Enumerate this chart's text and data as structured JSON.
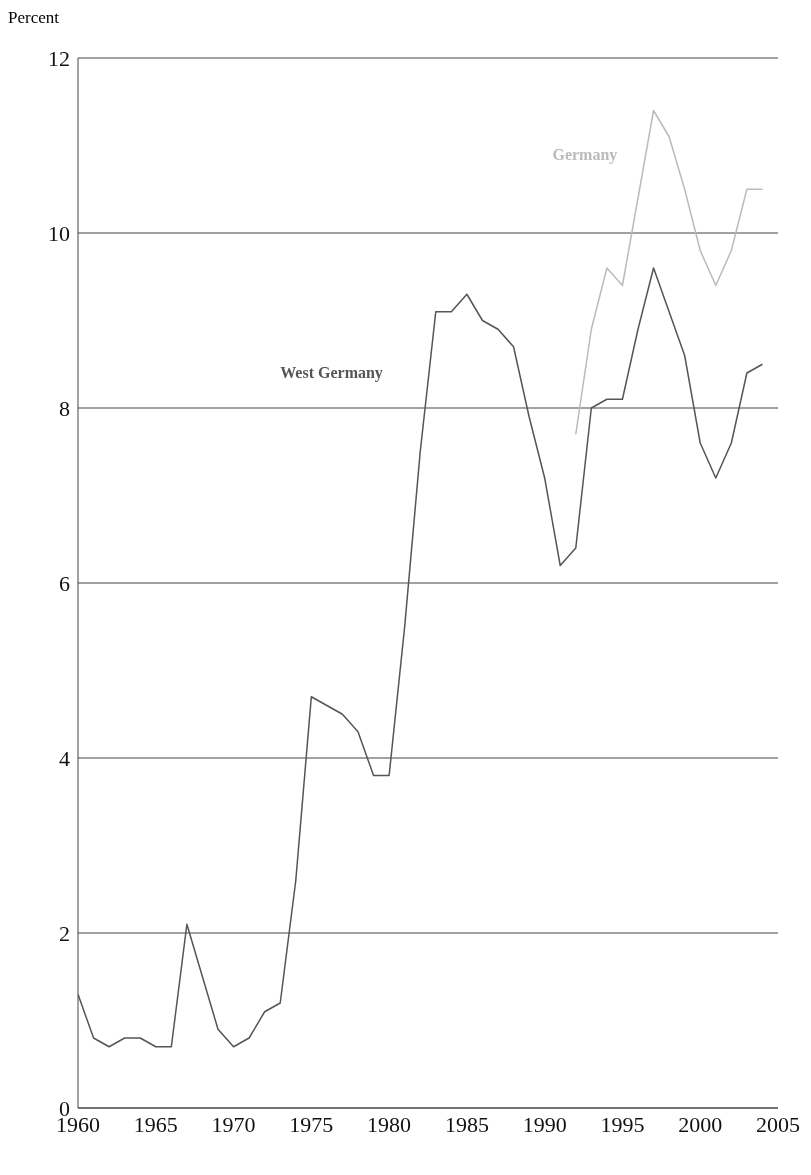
{
  "chart_data": {
    "type": "line",
    "ylabel": "Percent",
    "x": [
      1960,
      1961,
      1962,
      1963,
      1964,
      1965,
      1966,
      1967,
      1968,
      1969,
      1970,
      1971,
      1972,
      1973,
      1974,
      1975,
      1976,
      1977,
      1978,
      1979,
      1980,
      1981,
      1982,
      1983,
      1984,
      1985,
      1986,
      1987,
      1988,
      1989,
      1990,
      1991,
      1992,
      1993,
      1994,
      1995,
      1996,
      1997,
      1998,
      1999,
      2000,
      2001,
      2002,
      2003,
      2004
    ],
    "series": [
      {
        "name": "West Germany",
        "color": "#555555",
        "values": [
          1.3,
          0.8,
          0.7,
          0.8,
          0.8,
          0.7,
          0.7,
          2.1,
          1.5,
          0.9,
          0.7,
          0.8,
          1.1,
          1.2,
          2.6,
          4.7,
          4.6,
          4.5,
          4.3,
          3.8,
          3.8,
          5.5,
          7.5,
          9.1,
          9.1,
          9.3,
          9.0,
          8.9,
          8.7,
          7.9,
          7.2,
          6.2,
          6.4,
          8.0,
          8.1,
          8.1,
          8.9,
          9.6,
          9.1,
          8.6,
          7.6,
          7.2,
          7.6,
          8.4,
          8.5
        ]
      },
      {
        "name": "Germany",
        "color": "#bbbbbb",
        "values": [
          null,
          null,
          null,
          null,
          null,
          null,
          null,
          null,
          null,
          null,
          null,
          null,
          null,
          null,
          null,
          null,
          null,
          null,
          null,
          null,
          null,
          null,
          null,
          null,
          null,
          null,
          null,
          null,
          null,
          null,
          null,
          null,
          7.7,
          8.9,
          9.6,
          9.4,
          10.4,
          11.4,
          11.1,
          10.5,
          9.8,
          9.4,
          9.8,
          10.5,
          10.5
        ]
      }
    ],
    "xlim": [
      1960,
      2005
    ],
    "xticks": [
      1960,
      1965,
      1970,
      1975,
      1980,
      1985,
      1990,
      1995,
      2000,
      2005
    ],
    "ylim": [
      0,
      12
    ],
    "yticks": [
      0,
      2,
      4,
      6,
      8,
      10,
      12
    ],
    "grid": "y",
    "legend": false,
    "marker": "none",
    "line_style": "solid"
  }
}
